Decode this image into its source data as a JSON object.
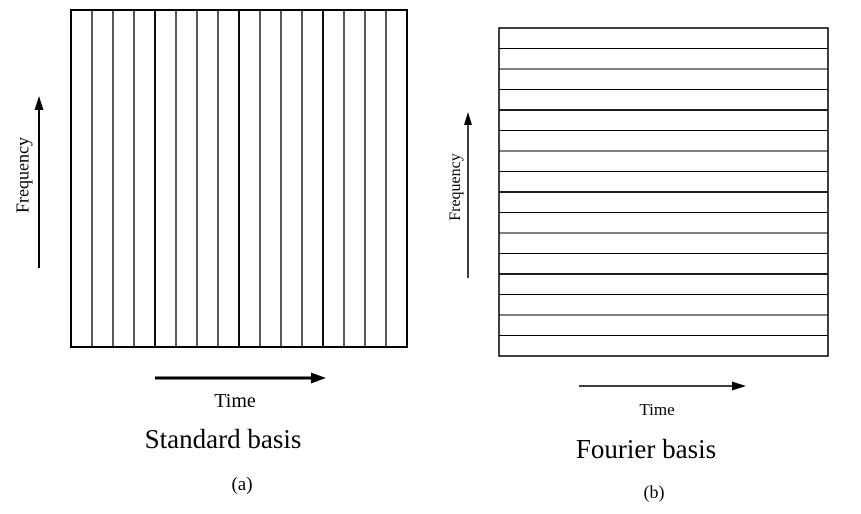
{
  "panels": [
    {
      "id": "a",
      "ylabel": "Frequency",
      "xlabel": "Time",
      "title": "Standard basis",
      "sublabel": "(a)",
      "orientation": "vertical",
      "divisions": 16
    },
    {
      "id": "b",
      "ylabel": "Frequency",
      "xlabel": "Time",
      "title": "Fourier basis",
      "sublabel": "(b)",
      "orientation": "horizontal",
      "divisions": 16
    }
  ]
}
